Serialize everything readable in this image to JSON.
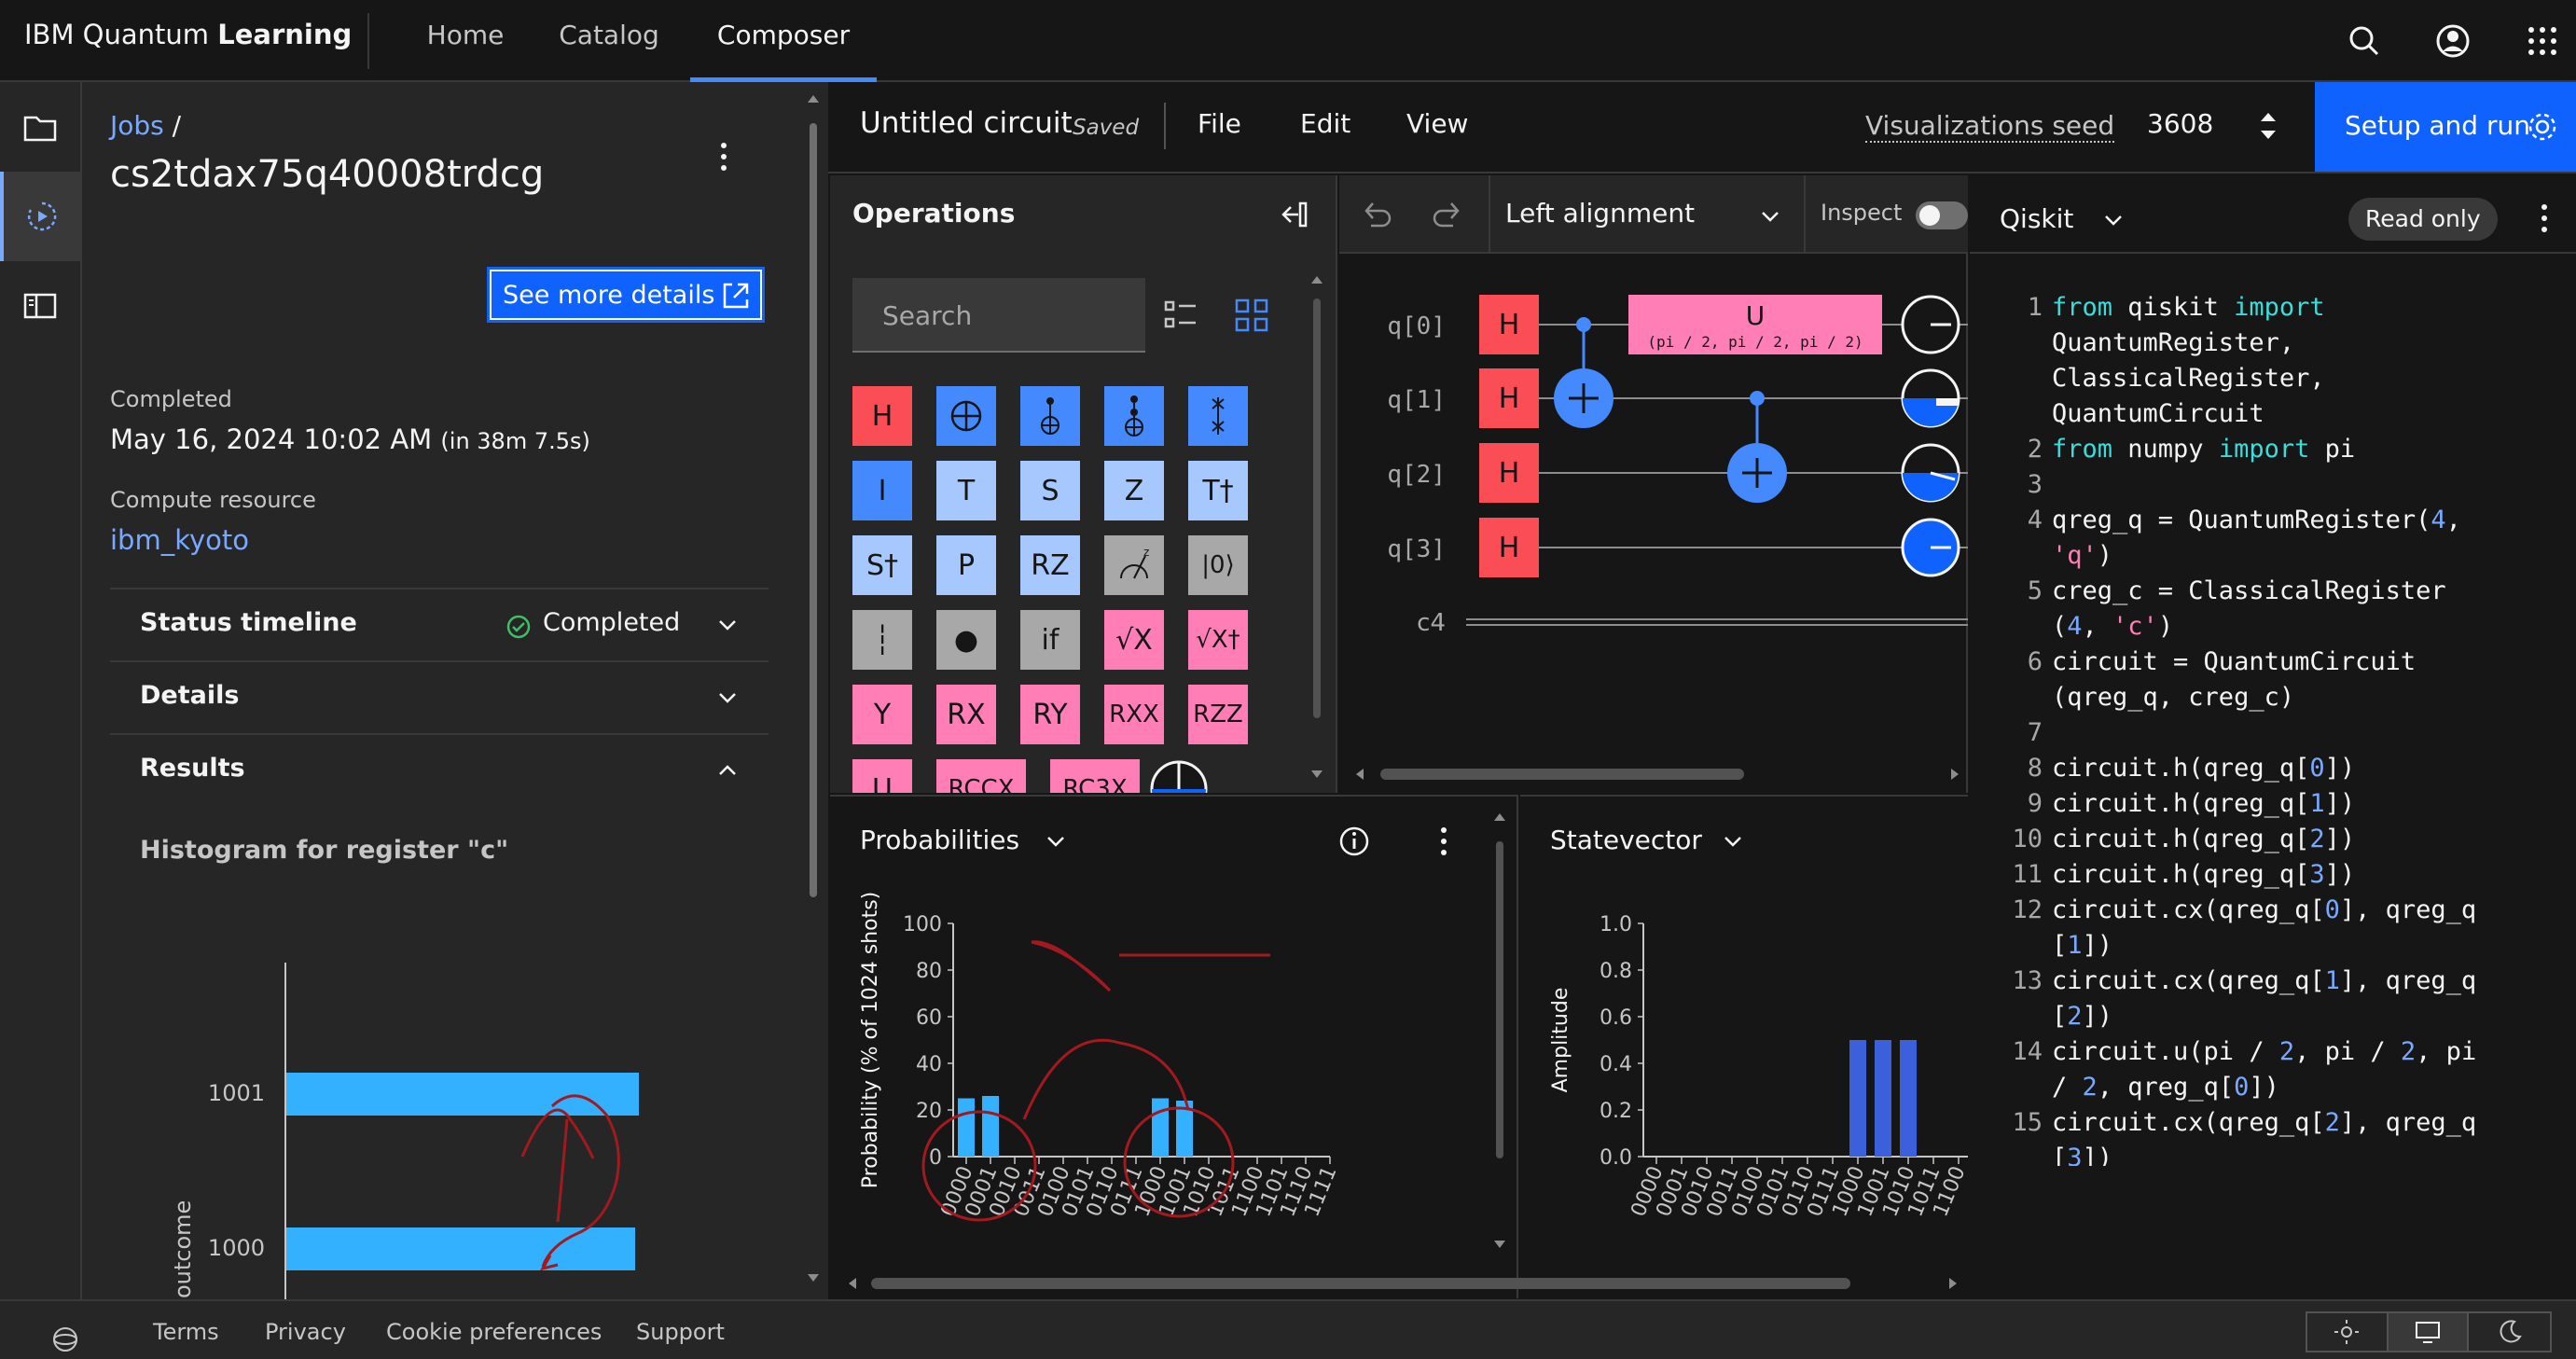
{
  "header": {
    "brand_prefix": "IBM Quantum",
    "brand_suffix": "Learning",
    "nav": [
      {
        "label": "Home"
      },
      {
        "label": "Catalog"
      },
      {
        "label": "Composer",
        "active": true
      }
    ]
  },
  "job_panel": {
    "breadcrumb_link": "Jobs",
    "breadcrumb_sep": "/",
    "job_id": "cs2tdax75q40008trdcg",
    "details_button": "See more details",
    "completed_label": "Completed",
    "completed_date": "May 16, 2024 10:02 AM",
    "completed_duration": "(in 38m 7.5s)",
    "compute_label": "Compute resource",
    "compute_value": "ibm_kyoto",
    "accordions": [
      {
        "label": "Status timeline",
        "status": "Completed",
        "expanded": false
      },
      {
        "label": "Details",
        "expanded": false
      },
      {
        "label": "Results",
        "expanded": true
      }
    ],
    "histogram_title": "Histogram for register \"c\"",
    "histogram": {
      "ylabel": "outcome",
      "rows": [
        {
          "label": "1001",
          "value": 1
        },
        {
          "label": "1000",
          "value": 0.99
        }
      ]
    }
  },
  "toolbar": {
    "circuit_title": "Untitled circuit",
    "saved": "Saved",
    "menus": [
      "File",
      "Edit",
      "View"
    ],
    "seed_label": "Visualizations seed",
    "seed_value": "3608",
    "setup_button": "Setup and run"
  },
  "operations": {
    "title": "Operations",
    "search_placeholder": "Search",
    "rows": [
      [
        {
          "t": "H",
          "c": "red"
        },
        {
          "t": "⊕",
          "c": "blue"
        },
        {
          "t": "cx",
          "c": "blue"
        },
        {
          "t": "ccx",
          "c": "blue"
        },
        {
          "t": "swap",
          "c": "blue"
        }
      ],
      [
        {
          "t": "I",
          "c": "blue"
        },
        {
          "t": "T",
          "c": "lblue"
        },
        {
          "t": "S",
          "c": "lblue"
        },
        {
          "t": "Z",
          "c": "lblue"
        },
        {
          "t": "T†",
          "c": "lblue"
        }
      ],
      [
        {
          "t": "S†",
          "c": "lblue"
        },
        {
          "t": "P",
          "c": "lblue"
        },
        {
          "t": "RZ",
          "c": "lblue"
        },
        {
          "t": "meas",
          "c": "gray"
        },
        {
          "t": "|0⟩",
          "c": "gray"
        }
      ],
      [
        {
          "t": "┆",
          "c": "gray"
        },
        {
          "t": "●",
          "c": "gray"
        },
        {
          "t": "if",
          "c": "gray"
        },
        {
          "t": "√X",
          "c": "pink"
        },
        {
          "t": "√X†",
          "c": "pink"
        }
      ],
      [
        {
          "t": "Y",
          "c": "pink"
        },
        {
          "t": "RX",
          "c": "pink"
        },
        {
          "t": "RY",
          "c": "pink"
        },
        {
          "t": "RXX",
          "c": "pink"
        },
        {
          "t": "RZZ",
          "c": "pink"
        }
      ],
      [
        {
          "t": "U",
          "c": "pink"
        },
        {
          "t": "RCCX",
          "c": "pink"
        },
        {
          "t": "RC3X",
          "c": "pink"
        }
      ]
    ]
  },
  "circuit": {
    "alignment": "Left alignment",
    "inspect": "Inspect",
    "qubits": [
      "q[0]",
      "q[1]",
      "q[2]",
      "q[3]"
    ],
    "classical": "c4",
    "gate_h": "H",
    "u_gate": "U",
    "u_params": "(pi / 2, pi / 2, pi / 2)"
  },
  "code": {
    "language": "Qiskit",
    "read_only": "Read only",
    "lines": [
      {
        "n": "1",
        "parts": [
          [
            "kw",
            "from"
          ],
          [
            "t",
            " qiskit "
          ],
          [
            "kw",
            "import"
          ]
        ]
      },
      {
        "n": "",
        "parts": [
          [
            "t",
            "QuantumRegister,"
          ]
        ]
      },
      {
        "n": "",
        "parts": [
          [
            "t",
            "ClassicalRegister,"
          ]
        ]
      },
      {
        "n": "",
        "parts": [
          [
            "t",
            "QuantumCircuit"
          ]
        ]
      },
      {
        "n": "2",
        "parts": [
          [
            "kw",
            "from"
          ],
          [
            "t",
            " numpy "
          ],
          [
            "kw",
            "import"
          ],
          [
            "t",
            " pi"
          ]
        ]
      },
      {
        "n": "3",
        "parts": []
      },
      {
        "n": "4",
        "parts": [
          [
            "t",
            "qreg_q = QuantumRegister("
          ],
          [
            "num",
            "4"
          ],
          [
            "t",
            ","
          ]
        ]
      },
      {
        "n": "",
        "parts": [
          [
            "str",
            "'q'"
          ],
          [
            "t",
            ")"
          ]
        ]
      },
      {
        "n": "5",
        "parts": [
          [
            "t",
            "creg_c = ClassicalRegister"
          ]
        ]
      },
      {
        "n": "",
        "parts": [
          [
            "t",
            "("
          ],
          [
            "num",
            "4"
          ],
          [
            "t",
            ", "
          ],
          [
            "str",
            "'c'"
          ],
          [
            "t",
            ")"
          ]
        ]
      },
      {
        "n": "6",
        "parts": [
          [
            "t",
            "circuit = QuantumCircuit"
          ]
        ]
      },
      {
        "n": "",
        "parts": [
          [
            "t",
            "(qreg_q, creg_c)"
          ]
        ]
      },
      {
        "n": "7",
        "parts": []
      },
      {
        "n": "8",
        "parts": [
          [
            "t",
            "circuit.h(qreg_q["
          ],
          [
            "num",
            "0"
          ],
          [
            "t",
            "])"
          ]
        ]
      },
      {
        "n": "9",
        "parts": [
          [
            "t",
            "circuit.h(qreg_q["
          ],
          [
            "num",
            "1"
          ],
          [
            "t",
            "])"
          ]
        ]
      },
      {
        "n": "10",
        "parts": [
          [
            "t",
            "circuit.h(qreg_q["
          ],
          [
            "num",
            "2"
          ],
          [
            "t",
            "])"
          ]
        ]
      },
      {
        "n": "11",
        "parts": [
          [
            "t",
            "circuit.h(qreg_q["
          ],
          [
            "num",
            "3"
          ],
          [
            "t",
            "])"
          ]
        ]
      },
      {
        "n": "12",
        "parts": [
          [
            "t",
            "circuit.cx(qreg_q["
          ],
          [
            "num",
            "0"
          ],
          [
            "t",
            "], qreg_q"
          ]
        ]
      },
      {
        "n": "",
        "parts": [
          [
            "t",
            "["
          ],
          [
            "num",
            "1"
          ],
          [
            "t",
            "])"
          ]
        ]
      },
      {
        "n": "13",
        "parts": [
          [
            "t",
            "circuit.cx(qreg_q["
          ],
          [
            "num",
            "1"
          ],
          [
            "t",
            "], qreg_q"
          ]
        ]
      },
      {
        "n": "",
        "parts": [
          [
            "t",
            "["
          ],
          [
            "num",
            "2"
          ],
          [
            "t",
            "])"
          ]
        ]
      },
      {
        "n": "14",
        "parts": [
          [
            "t",
            "circuit.u(pi / "
          ],
          [
            "num",
            "2"
          ],
          [
            "t",
            ", pi / "
          ],
          [
            "num",
            "2"
          ],
          [
            "t",
            ", pi"
          ]
        ]
      },
      {
        "n": "",
        "parts": [
          [
            "t",
            "/ "
          ],
          [
            "num",
            "2"
          ],
          [
            "t",
            ", qreg_q["
          ],
          [
            "num",
            "0"
          ],
          [
            "t",
            "])"
          ]
        ]
      },
      {
        "n": "15",
        "parts": [
          [
            "t",
            "circuit.cx(qreg_q["
          ],
          [
            "num",
            "2"
          ],
          [
            "t",
            "], qreg_q"
          ]
        ]
      },
      {
        "n": "",
        "parts": [
          [
            "t",
            "["
          ],
          [
            "num",
            "3"
          ],
          [
            "t",
            "])"
          ]
        ]
      }
    ]
  },
  "probabilities": {
    "title": "Probabilities",
    "chart_data": {
      "type": "bar",
      "ylabel": "Probability (% of 1024 shots)",
      "ylim": [
        0,
        100
      ],
      "yticks": [
        0,
        20,
        40,
        60,
        80,
        100
      ],
      "categories": [
        "0000",
        "0001",
        "0010",
        "0011",
        "0100",
        "0101",
        "0110",
        "0111",
        "1000",
        "1001",
        "1010",
        "1011",
        "1100",
        "1101",
        "1110",
        "1111"
      ],
      "values": [
        25,
        26,
        0,
        0,
        0,
        0,
        0,
        0,
        25,
        24,
        0,
        0,
        0,
        0,
        0,
        0
      ]
    }
  },
  "statevector": {
    "title": "Statevector",
    "chart_data": {
      "type": "bar",
      "ylabel": "Amplitude",
      "ylim": [
        0,
        1.0
      ],
      "yticks": [
        "0.0",
        "0.2",
        "0.4",
        "0.6",
        "0.8",
        "1.0"
      ],
      "categories": [
        "0000",
        "0001",
        "0010",
        "0011",
        "0100",
        "0101",
        "0110",
        "0111",
        "1000",
        "1001",
        "1010",
        "1011",
        "1100"
      ],
      "values": [
        0,
        0,
        0,
        0,
        0,
        0,
        0,
        0,
        0.5,
        0.5,
        0.5,
        0,
        0
      ]
    }
  },
  "footer": {
    "links": [
      "Terms",
      "Privacy",
      "Cookie preferences",
      "Support"
    ]
  },
  "colors": {
    "accent": "#0f62fe",
    "bar": "#33b1ff",
    "sv_bar": "#3c5fdc",
    "annotation": "#a2191f"
  }
}
